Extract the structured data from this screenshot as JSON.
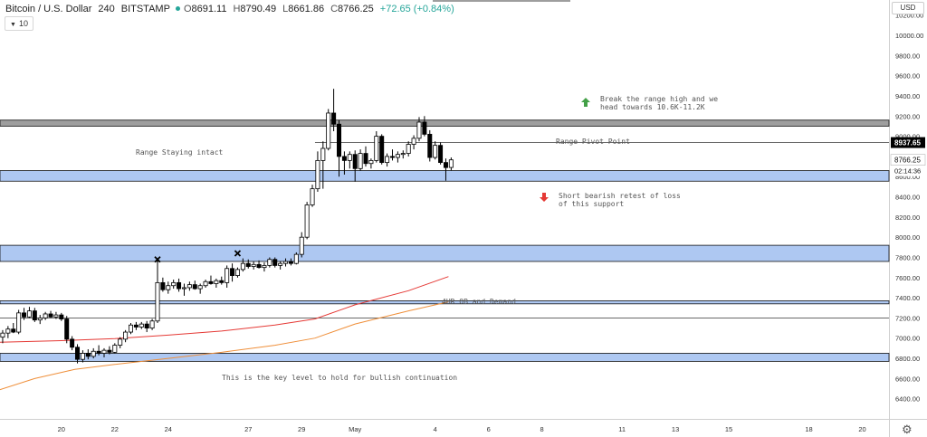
{
  "header": {
    "symbol": "Bitcoin / U.S. Dollar",
    "interval": "240",
    "exchange": "BITSTAMP",
    "o_label": "O",
    "o_value": "8691.11",
    "h_label": "H",
    "h_value": "8790.49",
    "l_label": "L",
    "l_value": "8661.86",
    "c_label": "C",
    "c_value": "8766.25",
    "change": "+72.65 (+0.84%)",
    "indicator_value": "10",
    "currency": "USD"
  },
  "colors": {
    "up_body": "#ffffff",
    "down_body": "#000000",
    "wick": "#000000",
    "zone_fill": "#aec8f2",
    "zone_border": "#111111",
    "grey_zone": "#9e9e9e",
    "ma_red": "#e53935",
    "ma_orange": "#ef8f3a",
    "arrow_up": "#43a047",
    "arrow_down": "#e53935",
    "last_price_bg": "#000000"
  },
  "annotations": {
    "range_intact": "Range Staying intact",
    "pivot": "Range Pivot Point",
    "break_high": "Break the range high and we head towards 10.6K-11.2K",
    "short_retest": "Short bearish retest of loss of this support",
    "ob_demand": "4HR OB and Demand",
    "key_level": "This is the key level to hold for bullish continuation"
  },
  "price_labels": {
    "pivot_price": "8937.65",
    "last_price": "8766.25",
    "countdown": "02:14:36"
  },
  "chart_data": {
    "type": "candlestick",
    "title": "Bitcoin / U.S. Dollar, 240, BITSTAMP",
    "ylim": [
      6200,
      10350
    ],
    "y_ticks": [
      6400,
      6600,
      6800,
      7000,
      7200,
      7400,
      7600,
      7800,
      8000,
      8200,
      8400,
      8600,
      8800,
      9000,
      9200,
      9400,
      9600,
      9800,
      10000,
      10200
    ],
    "x_ticks": [
      {
        "label": "20",
        "day": 20
      },
      {
        "label": "22",
        "day": 22
      },
      {
        "label": "24",
        "day": 24
      },
      {
        "label": "27",
        "day": 27
      },
      {
        "label": "29",
        "day": 29
      },
      {
        "label": "May",
        "day": 31
      },
      {
        "label": "4",
        "day": 34
      },
      {
        "label": "6",
        "day": 36
      },
      {
        "label": "8",
        "day": 38
      },
      {
        "label": "11",
        "day": 41
      },
      {
        "label": "13",
        "day": 43
      },
      {
        "label": "15",
        "day": 45
      },
      {
        "label": "18",
        "day": 48
      },
      {
        "label": "20",
        "day": 50
      }
    ],
    "zones": [
      {
        "kind": "grey",
        "y_low": 9100,
        "y_high": 9160
      },
      {
        "kind": "blue",
        "y_low": 8555,
        "y_high": 8660
      },
      {
        "kind": "blue",
        "y_low": 7760,
        "y_high": 7920
      },
      {
        "kind": "blue",
        "y_low": 7340,
        "y_high": 7370
      },
      {
        "kind": "blue",
        "y_low": 6770,
        "y_high": 6850
      }
    ],
    "levels": [
      {
        "name": "range-pivot",
        "y": 8937.65,
        "x_start_day": 29.5
      },
      {
        "name": "level-7200",
        "y": 7200,
        "x_start_day": 17.7
      }
    ],
    "moving_averages": [
      {
        "color_key": "ma_red",
        "points": [
          [
            17.7,
            6960
          ],
          [
            20,
            6975
          ],
          [
            22,
            6995
          ],
          [
            24,
            7030
          ],
          [
            26,
            7070
          ],
          [
            28,
            7130
          ],
          [
            29.5,
            7190
          ],
          [
            31,
            7330
          ],
          [
            33,
            7470
          ],
          [
            34.5,
            7610
          ]
        ]
      },
      {
        "color_key": "ma_orange",
        "points": [
          [
            17.7,
            6490
          ],
          [
            19,
            6600
          ],
          [
            20.5,
            6690
          ],
          [
            22,
            6740
          ],
          [
            24,
            6800
          ],
          [
            26,
            6860
          ],
          [
            28,
            6930
          ],
          [
            29.5,
            7000
          ],
          [
            31,
            7140
          ],
          [
            33,
            7270
          ],
          [
            34.5,
            7360
          ]
        ]
      }
    ],
    "candles": [
      {
        "day": 17.8,
        "o": 7010,
        "h": 7080,
        "l": 6950,
        "c": 7050
      },
      {
        "day": 18.0,
        "o": 7050,
        "h": 7120,
        "l": 7000,
        "c": 7090
      },
      {
        "day": 18.2,
        "o": 7090,
        "h": 7150,
        "l": 7050,
        "c": 7060
      },
      {
        "day": 18.4,
        "o": 7060,
        "h": 7280,
        "l": 7040,
        "c": 7250
      },
      {
        "day": 18.6,
        "o": 7250,
        "h": 7300,
        "l": 7180,
        "c": 7210
      },
      {
        "day": 18.8,
        "o": 7210,
        "h": 7310,
        "l": 7200,
        "c": 7270
      },
      {
        "day": 19.0,
        "o": 7270,
        "h": 7300,
        "l": 7160,
        "c": 7180
      },
      {
        "day": 19.2,
        "o": 7180,
        "h": 7230,
        "l": 7140,
        "c": 7200
      },
      {
        "day": 19.4,
        "o": 7200,
        "h": 7260,
        "l": 7180,
        "c": 7240
      },
      {
        "day": 19.6,
        "o": 7240,
        "h": 7270,
        "l": 7200,
        "c": 7210
      },
      {
        "day": 19.8,
        "o": 7210,
        "h": 7260,
        "l": 7190,
        "c": 7230
      },
      {
        "day": 20.0,
        "o": 7230,
        "h": 7250,
        "l": 7170,
        "c": 7190
      },
      {
        "day": 20.2,
        "o": 7190,
        "h": 7220,
        "l": 6950,
        "c": 6990
      },
      {
        "day": 20.4,
        "o": 6990,
        "h": 7020,
        "l": 6880,
        "c": 6910
      },
      {
        "day": 20.6,
        "o": 6910,
        "h": 6940,
        "l": 6750,
        "c": 6790
      },
      {
        "day": 20.8,
        "o": 6790,
        "h": 6880,
        "l": 6760,
        "c": 6850
      },
      {
        "day": 21.0,
        "o": 6850,
        "h": 6890,
        "l": 6790,
        "c": 6820
      },
      {
        "day": 21.2,
        "o": 6820,
        "h": 6900,
        "l": 6800,
        "c": 6870
      },
      {
        "day": 21.4,
        "o": 6870,
        "h": 6930,
        "l": 6830,
        "c": 6850
      },
      {
        "day": 21.6,
        "o": 6850,
        "h": 6900,
        "l": 6810,
        "c": 6880
      },
      {
        "day": 21.8,
        "o": 6880,
        "h": 6920,
        "l": 6840,
        "c": 6860
      },
      {
        "day": 22.0,
        "o": 6860,
        "h": 6950,
        "l": 6850,
        "c": 6930
      },
      {
        "day": 22.2,
        "o": 6930,
        "h": 7010,
        "l": 6900,
        "c": 6990
      },
      {
        "day": 22.4,
        "o": 6990,
        "h": 7080,
        "l": 6960,
        "c": 7060
      },
      {
        "day": 22.6,
        "o": 7060,
        "h": 7150,
        "l": 7040,
        "c": 7130
      },
      {
        "day": 22.8,
        "o": 7130,
        "h": 7160,
        "l": 7080,
        "c": 7110
      },
      {
        "day": 23.0,
        "o": 7110,
        "h": 7160,
        "l": 7090,
        "c": 7140
      },
      {
        "day": 23.2,
        "o": 7140,
        "h": 7170,
        "l": 7060,
        "c": 7100
      },
      {
        "day": 23.4,
        "o": 7100,
        "h": 7190,
        "l": 7080,
        "c": 7170
      },
      {
        "day": 23.6,
        "o": 7170,
        "h": 7780,
        "l": 7150,
        "c": 7550
      },
      {
        "day": 23.8,
        "o": 7550,
        "h": 7600,
        "l": 7460,
        "c": 7480
      },
      {
        "day": 24.0,
        "o": 7480,
        "h": 7560,
        "l": 7440,
        "c": 7520
      },
      {
        "day": 24.2,
        "o": 7520,
        "h": 7580,
        "l": 7490,
        "c": 7550
      },
      {
        "day": 24.4,
        "o": 7550,
        "h": 7590,
        "l": 7460,
        "c": 7490
      },
      {
        "day": 24.6,
        "o": 7490,
        "h": 7540,
        "l": 7420,
        "c": 7500
      },
      {
        "day": 24.8,
        "o": 7500,
        "h": 7560,
        "l": 7470,
        "c": 7530
      },
      {
        "day": 25.0,
        "o": 7530,
        "h": 7570,
        "l": 7480,
        "c": 7490
      },
      {
        "day": 25.2,
        "o": 7490,
        "h": 7540,
        "l": 7440,
        "c": 7520
      },
      {
        "day": 25.4,
        "o": 7520,
        "h": 7580,
        "l": 7500,
        "c": 7560
      },
      {
        "day": 25.6,
        "o": 7560,
        "h": 7620,
        "l": 7530,
        "c": 7540
      },
      {
        "day": 25.8,
        "o": 7540,
        "h": 7590,
        "l": 7500,
        "c": 7570
      },
      {
        "day": 26.0,
        "o": 7570,
        "h": 7610,
        "l": 7530,
        "c": 7550
      },
      {
        "day": 26.2,
        "o": 7550,
        "h": 7720,
        "l": 7500,
        "c": 7690
      },
      {
        "day": 26.4,
        "o": 7690,
        "h": 7740,
        "l": 7560,
        "c": 7620
      },
      {
        "day": 26.6,
        "o": 7620,
        "h": 7700,
        "l": 7600,
        "c": 7680
      },
      {
        "day": 26.8,
        "o": 7680,
        "h": 7790,
        "l": 7660,
        "c": 7740
      },
      {
        "day": 27.0,
        "o": 7740,
        "h": 7780,
        "l": 7690,
        "c": 7710
      },
      {
        "day": 27.2,
        "o": 7710,
        "h": 7760,
        "l": 7680,
        "c": 7730
      },
      {
        "day": 27.4,
        "o": 7730,
        "h": 7770,
        "l": 7690,
        "c": 7700
      },
      {
        "day": 27.6,
        "o": 7700,
        "h": 7750,
        "l": 7660,
        "c": 7720
      },
      {
        "day": 27.8,
        "o": 7720,
        "h": 7800,
        "l": 7700,
        "c": 7780
      },
      {
        "day": 28.0,
        "o": 7780,
        "h": 7800,
        "l": 7700,
        "c": 7720
      },
      {
        "day": 28.2,
        "o": 7720,
        "h": 7760,
        "l": 7680,
        "c": 7740
      },
      {
        "day": 28.4,
        "o": 7740,
        "h": 7790,
        "l": 7710,
        "c": 7760
      },
      {
        "day": 28.6,
        "o": 7760,
        "h": 7790,
        "l": 7720,
        "c": 7740
      },
      {
        "day": 28.8,
        "o": 7740,
        "h": 7850,
        "l": 7730,
        "c": 7830
      },
      {
        "day": 29.0,
        "o": 7830,
        "h": 8050,
        "l": 7800,
        "c": 8000
      },
      {
        "day": 29.2,
        "o": 8000,
        "h": 8350,
        "l": 7980,
        "c": 8320
      },
      {
        "day": 29.4,
        "o": 8320,
        "h": 8520,
        "l": 8300,
        "c": 8480
      },
      {
        "day": 29.6,
        "o": 8480,
        "h": 8850,
        "l": 8450,
        "c": 8760
      },
      {
        "day": 29.8,
        "o": 8760,
        "h": 8950,
        "l": 8480,
        "c": 8880
      },
      {
        "day": 30.0,
        "o": 8880,
        "h": 9270,
        "l": 8860,
        "c": 9230
      },
      {
        "day": 30.2,
        "o": 9230,
        "h": 9470,
        "l": 9050,
        "c": 9120
      },
      {
        "day": 30.4,
        "o": 9120,
        "h": 9160,
        "l": 8600,
        "c": 8800
      },
      {
        "day": 30.6,
        "o": 8800,
        "h": 8850,
        "l": 8620,
        "c": 8760
      },
      {
        "day": 30.8,
        "o": 8760,
        "h": 8850,
        "l": 8680,
        "c": 8820
      },
      {
        "day": 31.0,
        "o": 8820,
        "h": 8860,
        "l": 8550,
        "c": 8680
      },
      {
        "day": 31.2,
        "o": 8680,
        "h": 8870,
        "l": 8660,
        "c": 8830
      },
      {
        "day": 31.4,
        "o": 8830,
        "h": 8900,
        "l": 8700,
        "c": 8730
      },
      {
        "day": 31.6,
        "o": 8730,
        "h": 8780,
        "l": 8680,
        "c": 8760
      },
      {
        "day": 31.8,
        "o": 8760,
        "h": 9050,
        "l": 8740,
        "c": 9000
      },
      {
        "day": 32.0,
        "o": 9000,
        "h": 9020,
        "l": 8720,
        "c": 8740
      },
      {
        "day": 32.2,
        "o": 8740,
        "h": 8830,
        "l": 8700,
        "c": 8800
      },
      {
        "day": 32.4,
        "o": 8800,
        "h": 8870,
        "l": 8760,
        "c": 8790
      },
      {
        "day": 32.6,
        "o": 8790,
        "h": 8850,
        "l": 8740,
        "c": 8820
      },
      {
        "day": 32.8,
        "o": 8820,
        "h": 8860,
        "l": 8780,
        "c": 8830
      },
      {
        "day": 33.0,
        "o": 8830,
        "h": 8950,
        "l": 8800,
        "c": 8920
      },
      {
        "day": 33.2,
        "o": 8920,
        "h": 9010,
        "l": 8870,
        "c": 8980
      },
      {
        "day": 33.4,
        "o": 8980,
        "h": 9190,
        "l": 8950,
        "c": 9140
      },
      {
        "day": 33.6,
        "o": 9140,
        "h": 9200,
        "l": 9000,
        "c": 9020
      },
      {
        "day": 33.8,
        "o": 9020,
        "h": 9060,
        "l": 8750,
        "c": 8790
      },
      {
        "day": 34.0,
        "o": 8790,
        "h": 8950,
        "l": 8770,
        "c": 8910
      },
      {
        "day": 34.2,
        "o": 8910,
        "h": 8940,
        "l": 8720,
        "c": 8740
      },
      {
        "day": 34.4,
        "o": 8740,
        "h": 8780,
        "l": 8560,
        "c": 8690
      },
      {
        "day": 34.6,
        "o": 8691.11,
        "h": 8790.49,
        "l": 8661.86,
        "c": 8766.25
      }
    ]
  }
}
